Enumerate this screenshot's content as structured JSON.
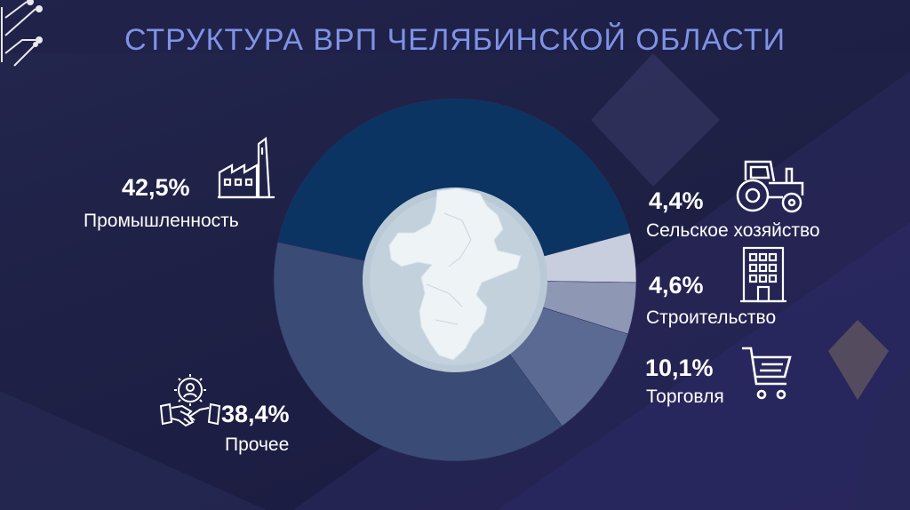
{
  "title": "СТРУКТУРА ВРП ЧЕЛЯБИНСКОЙ ОБЛАСТИ",
  "chart_data": {
    "type": "pie",
    "title": "СТРУКТУРА ВРП ЧЕЛЯБИНСКОЙ ОБЛАСТИ",
    "slices": [
      {
        "name": "Промышленность",
        "value": 42.5,
        "label": "42,5%",
        "color": "#0b3462"
      },
      {
        "name": "Сельское хозяйство",
        "value": 4.4,
        "label": "4,4%",
        "color": "#c9cede"
      },
      {
        "name": "Строительство",
        "value": 4.6,
        "label": "4,6%",
        "color": "#8e97b3"
      },
      {
        "name": "Торговля",
        "value": 10.1,
        "label": "10,1%",
        "color": "#5a6a92"
      },
      {
        "name": "Прочее",
        "value": 38.4,
        "label": "38,4%",
        "color": "#3a4b76"
      }
    ],
    "center": "карта Челябинской области"
  },
  "icons": {
    "industry": "factory-icon",
    "agriculture": "tractor-icon",
    "construction": "building-icon",
    "trade": "shopping-cart-icon",
    "other": "handshake-gear-icon"
  },
  "colors": {
    "title": "#7f93e6",
    "background": "#1f2147",
    "text": "#ffffff"
  }
}
